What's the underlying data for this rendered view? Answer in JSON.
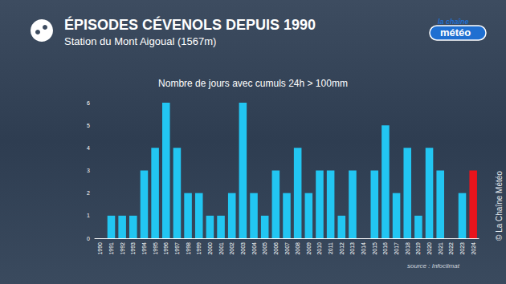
{
  "chart_data": {
    "type": "bar",
    "title": "ÉPISODES CÉVENOLS DEPUIS 1990",
    "subtitle": "Station du Mont Aigoual (1567m)",
    "chart_title": "Nombre de jours avec cumuls 24h > 100mm",
    "source": "source : Infoclimat",
    "copyright": "© La Chaîne Météo",
    "logo": [
      "la chaîne",
      "météo"
    ],
    "categories": [
      "1990",
      "1991",
      "1992",
      "1993",
      "1994",
      "1995",
      "1996",
      "1997",
      "1998",
      "1999",
      "2000",
      "2001",
      "2002",
      "2003",
      "2004",
      "2005",
      "2006",
      "2007",
      "2008",
      "2009",
      "2010",
      "2011",
      "2012",
      "2013",
      "2014",
      "2015",
      "2016",
      "2017",
      "2018",
      "2019",
      "2020",
      "2021",
      "2022",
      "2023",
      "2024"
    ],
    "values": [
      0,
      1,
      1,
      1,
      3,
      4,
      6,
      4,
      2,
      2,
      1,
      1,
      2,
      6,
      2,
      1,
      3,
      2,
      4,
      2,
      3,
      3,
      1,
      3,
      0,
      3,
      5,
      2,
      4,
      1,
      4,
      3,
      0,
      2,
      3
    ],
    "colors": [
      "#22c6f2",
      "#22c6f2",
      "#22c6f2",
      "#22c6f2",
      "#22c6f2",
      "#22c6f2",
      "#22c6f2",
      "#22c6f2",
      "#22c6f2",
      "#22c6f2",
      "#22c6f2",
      "#22c6f2",
      "#22c6f2",
      "#22c6f2",
      "#22c6f2",
      "#22c6f2",
      "#22c6f2",
      "#22c6f2",
      "#22c6f2",
      "#22c6f2",
      "#22c6f2",
      "#22c6f2",
      "#22c6f2",
      "#22c6f2",
      "#22c6f2",
      "#22c6f2",
      "#22c6f2",
      "#22c6f2",
      "#22c6f2",
      "#22c6f2",
      "#22c6f2",
      "#22c6f2",
      "#22c6f2",
      "#22c6f2",
      "#e8141c"
    ],
    "ylim": [
      0,
      6
    ],
    "yticks": [
      0,
      1,
      2,
      3,
      4,
      5,
      6
    ],
    "grid": false
  }
}
